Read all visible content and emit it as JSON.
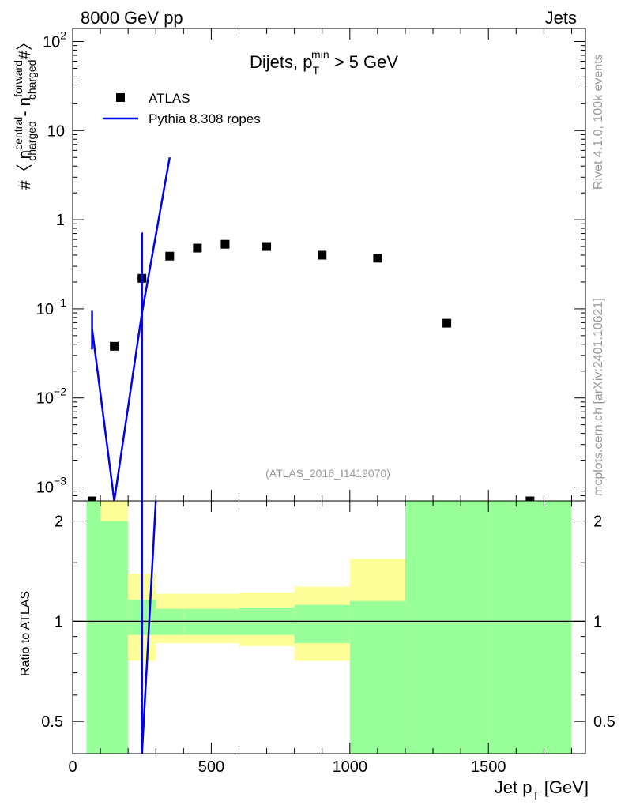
{
  "header": {
    "left": "8000 GeV pp",
    "right": "Jets"
  },
  "side_labels": {
    "top": "Rivet 4.1.0,  100k events",
    "bottom": "mcplots.cern.ch [arXiv:2401.10621]"
  },
  "colors": {
    "data": "#000000",
    "mc": "#0000ee",
    "band_inner": "#99ff99",
    "band_outer": "#ffff99",
    "watermark": "#999999"
  },
  "chart_data": [
    {
      "type": "scatter",
      "title": "Dijets, p_T^min > 5 GeV",
      "title_parts": {
        "main": "Dijets, p",
        "sub": "T",
        "sup": "min",
        "tail": " > 5 GeV"
      },
      "ylabel_parts": {
        "a": "#〈 n",
        "sup1": "central",
        "sub1": "charged",
        "b": " - n",
        "sup2": "forward",
        "sub2": "charged",
        "c": "#〉"
      },
      "yscale": "log",
      "ylim": [
        0.0007,
        140
      ],
      "xlim": [
        0,
        1850
      ],
      "yticks": [
        {
          "value": 0.001,
          "base": "10",
          "exp": "−3"
        },
        {
          "value": 0.01,
          "base": "10",
          "exp": "−2"
        },
        {
          "value": 0.1,
          "base": "10",
          "exp": "−1"
        },
        {
          "value": 1,
          "label": "1"
        },
        {
          "value": 10,
          "label": "10"
        },
        {
          "value": 100,
          "base": "10",
          "exp": "2"
        }
      ],
      "legend": [
        {
          "name": "ATLAS",
          "marker": "square"
        },
        {
          "name": "Pythia 8.308 ropes",
          "marker": "line"
        }
      ],
      "series": [
        {
          "name": "ATLAS",
          "x": [
            70,
            150,
            250,
            350,
            450,
            550,
            700,
            900,
            1100,
            1350,
            1650
          ],
          "y": [
            0.0006,
            0.038,
            0.22,
            0.39,
            0.48,
            0.53,
            0.5,
            0.4,
            0.37,
            0.069,
            0.0006
          ]
        },
        {
          "name": "Pythia 8.308 ropes",
          "x": [
            70,
            150,
            250,
            350
          ],
          "y": [
            0.06,
            0.0006,
            0.09,
            5.0
          ],
          "errors": [
            {
              "x": 70,
              "low": 0.035,
              "high": 0.095
            },
            {
              "x": 250,
              "low": 0.0006,
              "high": 0.72
            }
          ]
        }
      ],
      "watermark": "(ATLAS_2016_I1419070)"
    },
    {
      "type": "line",
      "ylabel": "Ratio to ATLAS",
      "xlabel_parts": {
        "main": "Jet p",
        "sub": "T",
        "tail": " [GeV]"
      },
      "yscale": "log",
      "ylim": [
        0.4,
        2.3
      ],
      "xlim": [
        0,
        1850
      ],
      "xticks": [
        0,
        500,
        1000,
        1500
      ],
      "yticks": [
        0.5,
        1,
        2
      ],
      "bands": {
        "edges": [
          50,
          100,
          200,
          300,
          400,
          600,
          800,
          1000,
          1200,
          1500,
          1800
        ],
        "inner_low": [
          0.4,
          0.4,
          0.91,
          0.91,
          0.91,
          0.91,
          0.86,
          0.4,
          0.4,
          0.4
        ],
        "inner_high": [
          2.3,
          2.0,
          1.16,
          1.09,
          1.09,
          1.1,
          1.12,
          1.15,
          2.3,
          2.3
        ],
        "outer_low": [
          0.4,
          0.4,
          0.76,
          0.86,
          0.86,
          0.84,
          0.76,
          0.76,
          0.4,
          0.4
        ],
        "outer_high": [
          2.3,
          2.3,
          1.39,
          1.21,
          1.21,
          1.22,
          1.27,
          1.54,
          2.3,
          2.3
        ]
      },
      "series": [
        {
          "name": "Pythia 8.308 ropes / ATLAS",
          "x": [
            250,
            300
          ],
          "y": [
            0.3,
            2.4
          ]
        }
      ],
      "reference_line": 1
    }
  ]
}
